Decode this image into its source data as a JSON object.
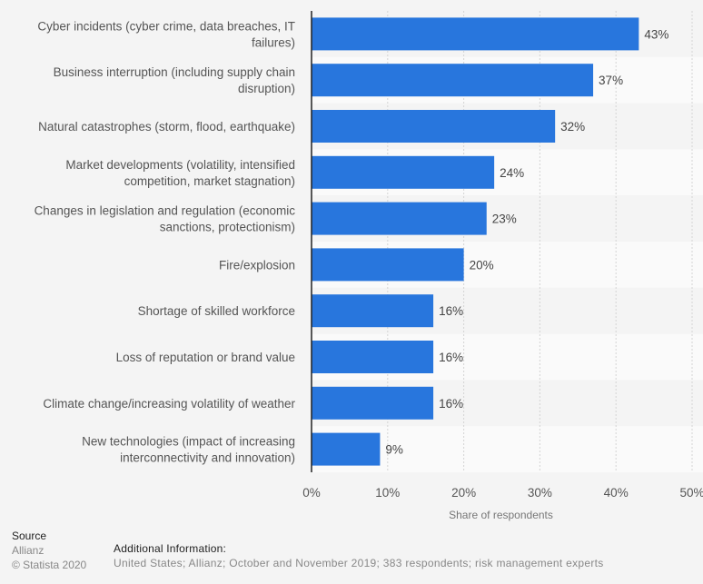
{
  "chart_data": {
    "type": "bar",
    "orientation": "horizontal",
    "categories": [
      [
        "Cyber incidents (cyber crime, data breaches, IT",
        "failures)"
      ],
      [
        "Business interruption (including supply chain",
        "disruption)"
      ],
      [
        "Natural catastrophes (storm, flood, earthquake)"
      ],
      [
        "Market developments (volatility, intensified",
        "competition, market stagnation)"
      ],
      [
        "Changes in legislation and regulation (economic",
        "sanctions, protectionism)"
      ],
      [
        "Fire/explosion"
      ],
      [
        "Shortage of skilled workforce"
      ],
      [
        "Loss of reputation or brand value"
      ],
      [
        "Climate change/increasing volatility of weather"
      ],
      [
        "New technologies (impact of increasing",
        "interconnectivity and innovation)"
      ]
    ],
    "values": [
      43,
      37,
      32,
      24,
      23,
      20,
      16,
      16,
      16,
      9
    ],
    "value_labels": [
      "43%",
      "37%",
      "32%",
      "24%",
      "23%",
      "20%",
      "16%",
      "16%",
      "16%",
      "9%"
    ],
    "xlabel": "Share of respondents",
    "ylabel": "",
    "xlim": [
      0,
      50
    ],
    "xticks": [
      0,
      10,
      20,
      30,
      40,
      50
    ],
    "xtick_labels": [
      "0%",
      "10%",
      "20%",
      "30%",
      "40%",
      "50%"
    ],
    "grid": true,
    "legend": "none",
    "bar_color": "#2876dd"
  },
  "footer": {
    "source_title": "Source",
    "source_name": "Allianz",
    "copyright": "© Statista 2020",
    "additional_title": "Additional Information:",
    "additional_text": "United States; Allianz; October and November 2019; 383 respondents; risk management experts"
  }
}
